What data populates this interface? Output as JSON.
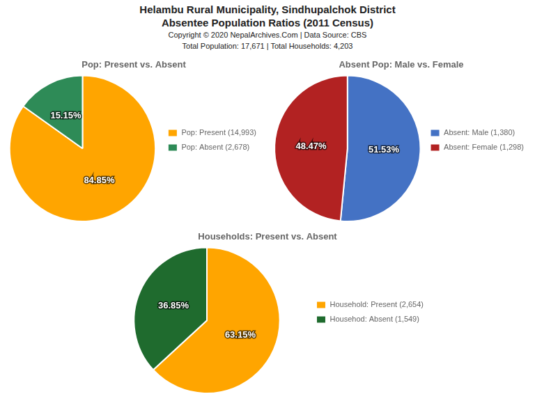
{
  "title": [
    "Helambu Rural Municipality, Sindhupalchok District",
    "Absentee Population Ratios (2011 Census)"
  ],
  "subtitle": [
    "Copyright © 2020 NepalArchives.Com | Data Source: CBS",
    "Total Population: 17,671 | Total Households: 4,203"
  ],
  "chart_data": [
    {
      "type": "pie",
      "title": "Pop: Present vs. Absent",
      "categories": [
        "Pop: Present (14,993)",
        "Pop: Absent (2,678)"
      ],
      "values": [
        84.85,
        15.15
      ],
      "value_labels": [
        "84.85%",
        "15.15%"
      ],
      "colors": [
        "#FFA500",
        "#2E8B57"
      ],
      "data_labels": true,
      "legend": "right"
    },
    {
      "type": "pie",
      "title": "Absent Pop: Male vs. Female",
      "categories": [
        "Absent: Male (1,380)",
        "Absent: Female (1,298)"
      ],
      "values": [
        51.53,
        48.47
      ],
      "value_labels": [
        "51.53%",
        "48.47%"
      ],
      "colors": [
        "#4472C4",
        "#B22222"
      ],
      "data_labels": true,
      "legend": "right"
    },
    {
      "type": "pie",
      "title": "Households: Present vs. Absent",
      "categories": [
        "Household: Present (2,654)",
        "Househod: Absent (1,549)"
      ],
      "values": [
        63.15,
        36.85
      ],
      "value_labels": [
        "63.15%",
        "36.85%"
      ],
      "colors": [
        "#FFA500",
        "#1F6B2E"
      ],
      "data_labels": true,
      "legend": "right"
    }
  ]
}
